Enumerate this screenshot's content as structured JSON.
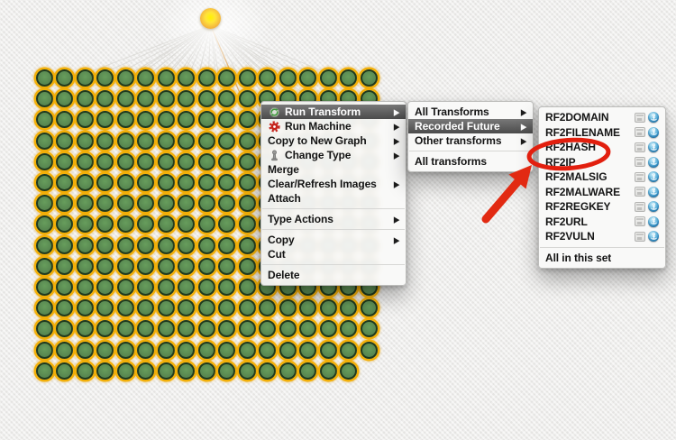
{
  "app": {
    "view": "graph-canvas-with-context-menus"
  },
  "canvas": {
    "background_color": "#edecea",
    "edge_color": "#d8d7d3",
    "edge_highlight_color": "#e0ae6e",
    "root_node": {
      "name": "source-entity",
      "center_color": "#fff200",
      "rim_color": "#eda43b"
    },
    "entity_grid": {
      "rows": 15,
      "columns": 17,
      "last_row_columns": 16,
      "fill": "#578650",
      "inner_ring": "#203a1d",
      "outer_ring": "#f3b008"
    }
  },
  "menus": {
    "context": {
      "items": [
        {
          "label": "Run Transform",
          "icon": "run-transform-icon",
          "submenu": true,
          "highlighted": true
        },
        {
          "label": "Run Machine",
          "icon": "run-machine-icon",
          "submenu": true
        },
        {
          "label": "Copy to New Graph",
          "submenu": true
        },
        {
          "label": "Change Type",
          "icon": "change-type-icon",
          "submenu": true
        },
        {
          "label": "Merge"
        },
        {
          "label": "Clear/Refresh Images",
          "submenu": true
        },
        {
          "label": "Attach"
        },
        {
          "type": "separator"
        },
        {
          "label": "Type Actions",
          "submenu": true
        },
        {
          "type": "separator"
        },
        {
          "label": "Copy",
          "submenu": true
        },
        {
          "label": "Cut"
        },
        {
          "type": "separator"
        },
        {
          "label": "Delete"
        }
      ]
    },
    "run_transform_submenu": {
      "items": [
        {
          "label": "All Transforms",
          "submenu": true
        },
        {
          "label": "Recorded Future",
          "submenu": true,
          "highlighted": true
        },
        {
          "label": "Other transforms",
          "submenu": true
        },
        {
          "type": "separator"
        },
        {
          "label": "All transforms"
        }
      ]
    },
    "recorded_future_submenu": {
      "items": [
        {
          "label": "RF2DOMAIN",
          "icons": [
            "transform-window-icon",
            "remote-transform-icon"
          ]
        },
        {
          "label": "RF2FILENAME",
          "icons": [
            "transform-window-icon",
            "remote-transform-icon"
          ]
        },
        {
          "label": "RF2HASH",
          "icons": [
            "transform-window-icon",
            "remote-transform-icon"
          ],
          "annotated": true
        },
        {
          "label": "RF2IP",
          "icons": [
            "transform-window-icon",
            "remote-transform-icon"
          ]
        },
        {
          "label": "RF2MALSIG",
          "icons": [
            "transform-window-icon",
            "remote-transform-icon"
          ]
        },
        {
          "label": "RF2MALWARE",
          "icons": [
            "transform-window-icon",
            "remote-transform-icon"
          ]
        },
        {
          "label": "RF2REGKEY",
          "icons": [
            "transform-window-icon",
            "remote-transform-icon"
          ]
        },
        {
          "label": "RF2URL",
          "icons": [
            "transform-window-icon",
            "remote-transform-icon"
          ]
        },
        {
          "label": "RF2VULN",
          "icons": [
            "transform-window-icon",
            "remote-transform-icon"
          ]
        },
        {
          "type": "separator"
        },
        {
          "label": "All in this set"
        }
      ]
    }
  },
  "annotation": {
    "type": "hand-drawn-ellipse-and-arrow",
    "color": "#e21f0e",
    "circled_item": "RF2HASH"
  }
}
